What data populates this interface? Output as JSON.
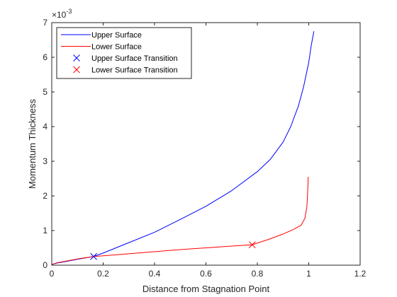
{
  "chart_data": {
    "type": "line",
    "xlabel": "Distance from Stagnation Point",
    "ylabel": "Momentum Thickness",
    "exponent_label": "×10",
    "exponent_power": "-3",
    "xlim": [
      0,
      1.2
    ],
    "ylim": [
      0,
      7
    ],
    "x_ticks": [
      0,
      0.2,
      0.4,
      0.6,
      0.8,
      1,
      1.2
    ],
    "x_tick_labels": [
      "0",
      "0.2",
      "0.4",
      "0.6",
      "0.8",
      "1",
      "1.2"
    ],
    "y_ticks": [
      0,
      1,
      2,
      3,
      4,
      5,
      6,
      7
    ],
    "y_tick_labels": [
      "0",
      "1",
      "2",
      "3",
      "4",
      "5",
      "6",
      "7"
    ],
    "grid": false,
    "legend_placement": "top-left",
    "series": [
      {
        "name": "Upper Surface",
        "color": "#0000ff",
        "x": [
          0,
          0.02,
          0.05,
          0.1,
          0.163,
          0.2,
          0.3,
          0.4,
          0.5,
          0.6,
          0.7,
          0.8,
          0.85,
          0.9,
          0.93,
          0.96,
          0.98,
          1.0,
          1.01,
          1.02
        ],
        "y": [
          0.02,
          0.06,
          0.1,
          0.17,
          0.25,
          0.35,
          0.65,
          0.95,
          1.32,
          1.7,
          2.15,
          2.7,
          3.05,
          3.55,
          4.0,
          4.6,
          5.15,
          5.85,
          6.35,
          6.75
        ]
      },
      {
        "name": "Lower Surface",
        "color": "#ff0000",
        "x": [
          0,
          0.02,
          0.05,
          0.1,
          0.163,
          0.2,
          0.3,
          0.4,
          0.5,
          0.6,
          0.7,
          0.78,
          0.85,
          0.9,
          0.94,
          0.97,
          0.985,
          0.993,
          0.996,
          0.998
        ],
        "y": [
          0.02,
          0.07,
          0.11,
          0.18,
          0.25,
          0.27,
          0.33,
          0.39,
          0.45,
          0.5,
          0.55,
          0.59,
          0.76,
          0.9,
          1.03,
          1.15,
          1.35,
          1.7,
          2.15,
          2.55
        ]
      },
      {
        "name": "Upper Surface Transition",
        "color": "#0000ff",
        "marker": "x",
        "x": [
          0.163
        ],
        "y": [
          0.25
        ]
      },
      {
        "name": "Lower Surface Transition",
        "color": "#ff0000",
        "marker": "x",
        "x": [
          0.78
        ],
        "y": [
          0.59
        ]
      }
    ]
  }
}
